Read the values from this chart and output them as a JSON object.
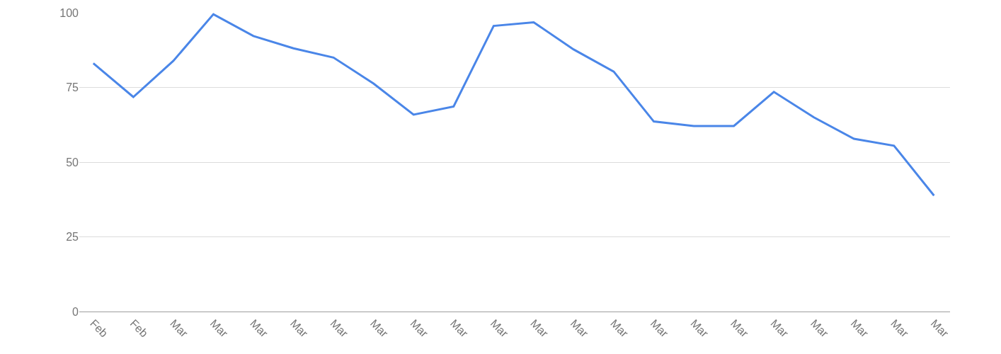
{
  "chart_data": {
    "type": "line",
    "categories": [
      "Feb",
      "Feb",
      "Mar",
      "Mar",
      "Mar",
      "Mar",
      "Mar",
      "Mar",
      "Mar",
      "Mar",
      "Mar",
      "Mar",
      "Mar",
      "Mar",
      "Mar",
      "Mar",
      "Mar",
      "Mar",
      "Mar",
      "Mar",
      "Mar",
      "Mar"
    ],
    "series": [
      {
        "color": "#4a86e8",
        "values": [
          83.1,
          71.8,
          83.9,
          99.5,
          92.2,
          88.1,
          85.0,
          76.3,
          65.9,
          68.6,
          95.6,
          96.8,
          87.7,
          80.3,
          63.6,
          62.1,
          62.1,
          73.5,
          65.0,
          57.8,
          55.5,
          38.8
        ]
      }
    ],
    "ylim": [
      0,
      100
    ],
    "yticks": [
      0,
      25,
      50,
      75,
      100
    ],
    "grid": "y",
    "marker": "none",
    "line_style": "solid"
  }
}
